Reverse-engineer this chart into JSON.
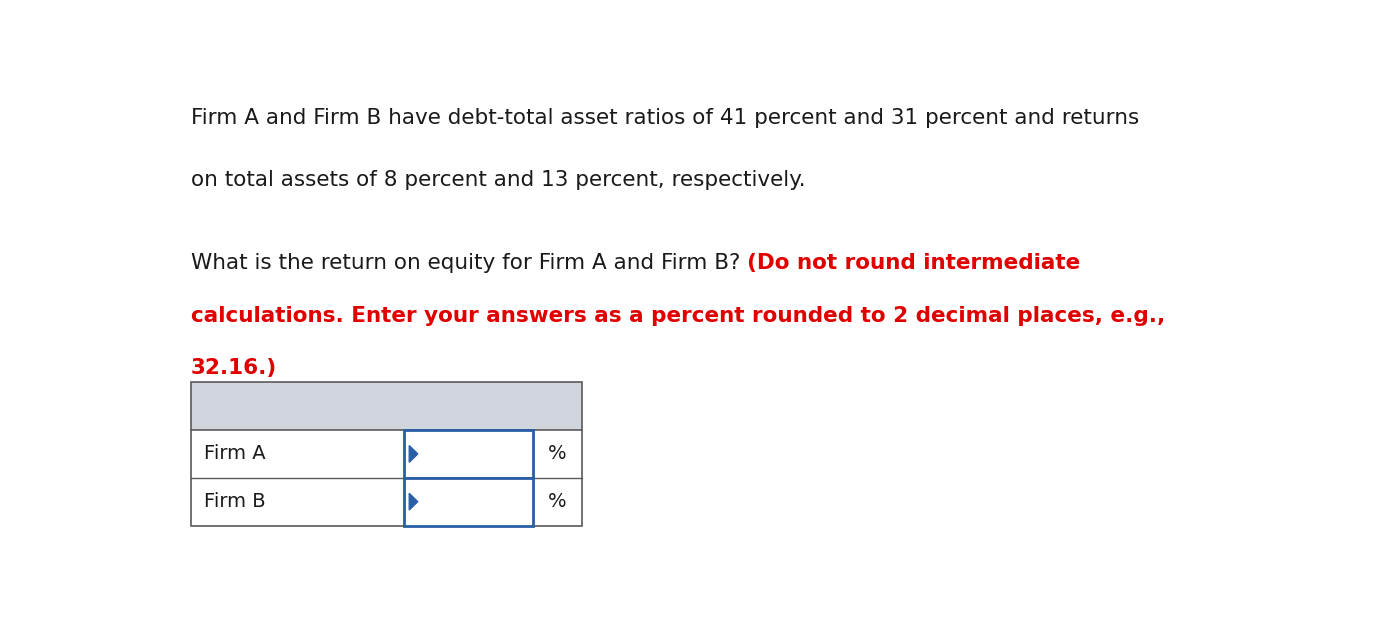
{
  "background_color": "#ffffff",
  "para1_line1": "Firm A and Firm B have debt-total asset ratios of 41 percent and 31 percent and returns",
  "para1_line2": "on total assets of 8 percent and 13 percent, respectively.",
  "line1_black": "What is the return on equity for Firm A and Firm B? ",
  "line1_red": "(Do not round intermediate",
  "line2_red": "calculations. Enter your answers as a percent rounded to 2 decimal places, e.g.,",
  "line3_red": "32.16.)",
  "table_header_bg": "#d0d5de",
  "table_border_color": "#5a5a5a",
  "input_border_color": "#2a5fa8",
  "row_labels": [
    "Firm A",
    "Firm B"
  ],
  "col_suffix": "%",
  "text_color": "#1a1a1a",
  "red_color": "#e00000",
  "font_size_body": 15.5,
  "font_size_table": 14
}
